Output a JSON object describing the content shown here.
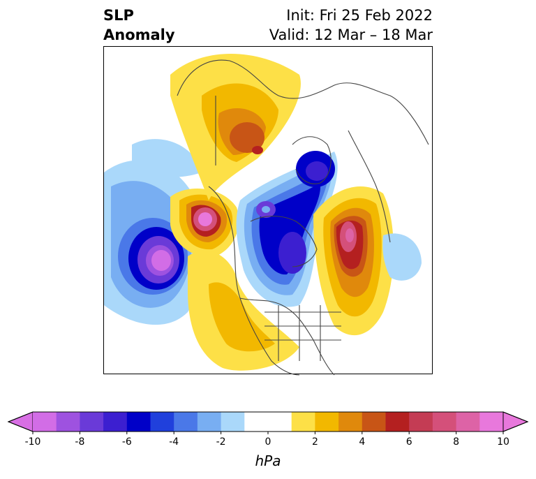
{
  "title": {
    "variable_line1": "SLP",
    "variable_line2": "Anomaly",
    "init_line": "Init: Fri 25 Feb 2022",
    "valid_line": "Valid: 12 Mar – 18 Mar"
  },
  "colorbar": {
    "unit": "hPa",
    "tick_labels": [
      "-10",
      "-8",
      "-6",
      "-4",
      "-2",
      "0",
      "2",
      "4",
      "6",
      "8",
      "10"
    ],
    "colors": [
      "#d26de6",
      "#9e52e0",
      "#6a3ad8",
      "#3c1fd0",
      "#0000c8",
      "#2040dc",
      "#4a78e8",
      "#78aef2",
      "#aad8fa",
      "#ffffff",
      "#ffffff",
      "#fde047",
      "#f2b800",
      "#e0890c",
      "#c85516",
      "#b42020",
      "#c43c54",
      "#d4507a",
      "#dd63a6",
      "#e878dc"
    ],
    "underflow_color": "#d86fe4",
    "overflow_color": "#e878dc"
  }
}
